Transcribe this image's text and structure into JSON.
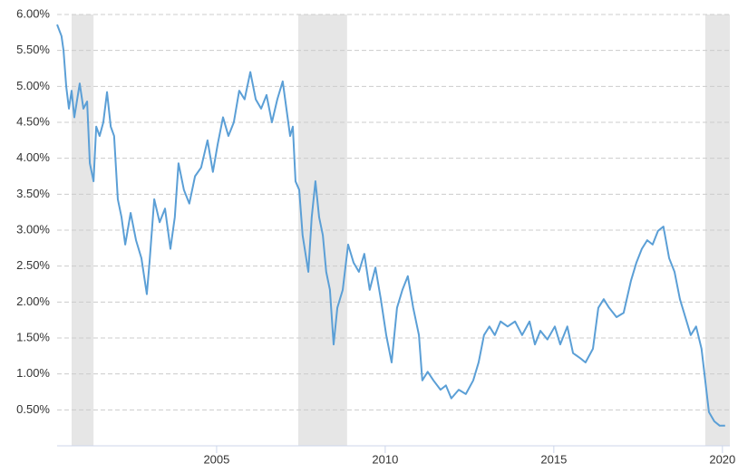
{
  "chart_data": {
    "type": "line",
    "xlim": [
      2000.27,
      2020.22
    ],
    "ylim": [
      0,
      6
    ],
    "xticks": [
      2005,
      2010,
      2015,
      2020
    ],
    "yticks": [
      {
        "value": 0.5,
        "label": "0.50%"
      },
      {
        "value": 1,
        "label": "1.00%"
      },
      {
        "value": 1.5,
        "label": "1.50%"
      },
      {
        "value": 2,
        "label": "2.00%"
      },
      {
        "value": 2.5,
        "label": "2.50%"
      },
      {
        "value": 3,
        "label": "3.00%"
      },
      {
        "value": 3.5,
        "label": "3.50%"
      },
      {
        "value": 4,
        "label": "4.00%"
      },
      {
        "value": 4.5,
        "label": "4.50%"
      },
      {
        "value": 5,
        "label": "5.00%"
      },
      {
        "value": 5.5,
        "label": "5.50%"
      },
      {
        "value": 6,
        "label": "6.00%"
      }
    ],
    "grid": true,
    "shaded_ranges": [
      [
        2000.7,
        2001.35
      ],
      [
        2007.42,
        2008.87
      ],
      [
        2019.49,
        2020.22
      ]
    ],
    "shade_color": "#e6e6e6",
    "x": [
      2000.27,
      2000.4,
      2000.46,
      2000.54,
      2000.62,
      2000.7,
      2000.78,
      2000.94,
      2001.05,
      2001.16,
      2001.24,
      2001.35,
      2001.43,
      2001.53,
      2001.64,
      2001.75,
      2001.86,
      2001.96,
      2002.07,
      2002.18,
      2002.29,
      2002.45,
      2002.61,
      2002.77,
      2002.93,
      2003.01,
      2003.15,
      2003.31,
      2003.47,
      2003.63,
      2003.76,
      2003.87,
      2004.03,
      2004.19,
      2004.36,
      2004.54,
      2004.73,
      2004.89,
      2005.03,
      2005.19,
      2005.35,
      2005.51,
      2005.67,
      2005.83,
      2006.0,
      2006.16,
      2006.32,
      2006.48,
      2006.64,
      2006.8,
      2006.96,
      2007.07,
      2007.18,
      2007.26,
      2007.34,
      2007.45,
      2007.55,
      2007.72,
      2007.82,
      2007.93,
      2008.04,
      2008.15,
      2008.25,
      2008.36,
      2008.47,
      2008.58,
      2008.74,
      2008.9,
      2009.06,
      2009.22,
      2009.38,
      2009.54,
      2009.71,
      2009.87,
      2010.03,
      2010.19,
      2010.35,
      2010.51,
      2010.67,
      2010.83,
      2011.0,
      2011.1,
      2011.26,
      2011.43,
      2011.64,
      2011.8,
      2011.96,
      2012.18,
      2012.39,
      2012.61,
      2012.77,
      2012.93,
      2013.09,
      2013.25,
      2013.42,
      2013.63,
      2013.85,
      2014.06,
      2014.28,
      2014.44,
      2014.6,
      2014.81,
      2015.03,
      2015.19,
      2015.4,
      2015.57,
      2015.78,
      2015.94,
      2016.16,
      2016.32,
      2016.48,
      2016.64,
      2016.86,
      2017.07,
      2017.29,
      2017.45,
      2017.61,
      2017.77,
      2017.93,
      2018.09,
      2018.25,
      2018.42,
      2018.58,
      2018.74,
      2018.9,
      2019.06,
      2019.22,
      2019.38,
      2019.49,
      2019.6,
      2019.76,
      2019.92,
      2020.08
    ],
    "series": [
      {
        "color": "#5b9fd6",
        "values": [
          5.86,
          5.7,
          5.5,
          5.0,
          4.69,
          4.94,
          4.57,
          5.04,
          4.69,
          4.79,
          3.93,
          3.68,
          4.44,
          4.31,
          4.5,
          4.92,
          4.44,
          4.31,
          3.43,
          3.18,
          2.8,
          3.24,
          2.86,
          2.61,
          2.11,
          2.55,
          3.43,
          3.11,
          3.3,
          2.74,
          3.18,
          3.93,
          3.56,
          3.37,
          3.75,
          3.87,
          4.25,
          3.81,
          4.19,
          4.57,
          4.31,
          4.5,
          4.94,
          4.82,
          5.2,
          4.82,
          4.69,
          4.88,
          4.5,
          4.82,
          5.07,
          4.69,
          4.31,
          4.44,
          3.68,
          3.56,
          2.93,
          2.42,
          3.18,
          3.68,
          3.18,
          2.93,
          2.42,
          2.17,
          1.41,
          1.92,
          2.17,
          2.8,
          2.55,
          2.42,
          2.67,
          2.17,
          2.48,
          2.04,
          1.54,
          1.16,
          1.92,
          2.17,
          2.36,
          1.92,
          1.54,
          0.91,
          1.03,
          0.91,
          0.78,
          0.84,
          0.66,
          0.78,
          0.72,
          0.91,
          1.16,
          1.54,
          1.66,
          1.54,
          1.73,
          1.66,
          1.73,
          1.54,
          1.73,
          1.41,
          1.6,
          1.48,
          1.66,
          1.41,
          1.66,
          1.29,
          1.22,
          1.16,
          1.35,
          1.92,
          2.04,
          1.92,
          1.79,
          1.85,
          2.3,
          2.55,
          2.74,
          2.86,
          2.8,
          2.99,
          3.05,
          2.61,
          2.42,
          2.04,
          1.79,
          1.54,
          1.66,
          1.35,
          0.91,
          0.47,
          0.34,
          0.28,
          0.28
        ]
      }
    ]
  }
}
